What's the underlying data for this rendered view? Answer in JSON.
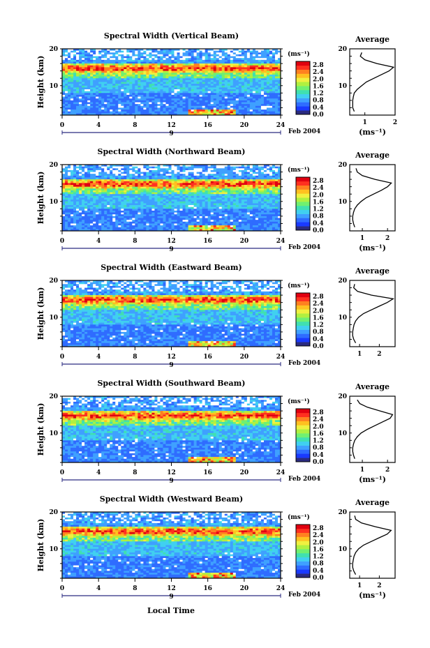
{
  "figure": {
    "xlabel": "Local Time",
    "day_label": "9",
    "date_label": "Feb 2004",
    "ylabel": "Height (km)",
    "units": "(ms⁻¹)",
    "avg_title": "Average",
    "colorbar_ticks": [
      "2.8",
      "2.4",
      "2.0",
      "1.6",
      "1.2",
      "0.8",
      "0.4",
      "0.0"
    ],
    "colorbar_colors": [
      "#2b2b80",
      "#1a3aff",
      "#2f6cff",
      "#3fa0ff",
      "#40d0f0",
      "#40e0b0",
      "#70f070",
      "#b0f040",
      "#f0f040",
      "#ffc020",
      "#ff8020",
      "#ff3020",
      "#e00010"
    ]
  },
  "chart_data": [
    {
      "type": "heatmap",
      "title": "Spectral Width (Vertical Beam)",
      "xlabel": "Local Time",
      "ylabel": "Height (km)",
      "xlim": [
        0,
        24
      ],
      "ylim": [
        2,
        20
      ],
      "xticks": [
        0,
        4,
        8,
        12,
        16,
        20,
        24
      ],
      "yticks": [
        10,
        20
      ],
      "colorbar": {
        "label": "(ms⁻¹)",
        "range": [
          0,
          3.0
        ],
        "ticks": [
          0.0,
          0.4,
          0.8,
          1.2,
          1.6,
          2.0,
          2.4,
          2.8
        ]
      },
      "average_profile": {
        "title": "Average",
        "xlabel": "(ms⁻¹)",
        "xlim": [
          0.5,
          2.0
        ],
        "xticks": [
          1,
          2
        ],
        "ylim": [
          2,
          20
        ],
        "height_km": [
          3,
          4,
          5,
          6,
          7,
          8,
          9,
          10,
          11,
          12,
          13,
          14,
          15,
          16,
          17,
          18,
          19
        ],
        "width_ms": [
          0.65,
          0.6,
          0.6,
          0.6,
          0.62,
          0.65,
          0.75,
          0.9,
          1.05,
          1.3,
          1.55,
          1.8,
          1.95,
          1.4,
          1.0,
          0.85,
          0.9
        ]
      }
    },
    {
      "type": "heatmap",
      "title": "Spectral Width (Northward Beam)",
      "xlabel": "Local Time",
      "ylabel": "Height (km)",
      "xlim": [
        0,
        24
      ],
      "ylim": [
        2,
        20
      ],
      "xticks": [
        0,
        4,
        8,
        12,
        16,
        20,
        24
      ],
      "yticks": [
        10,
        20
      ],
      "colorbar": {
        "label": "(ms⁻¹)",
        "range": [
          0,
          3.0
        ],
        "ticks": [
          0.0,
          0.4,
          0.8,
          1.2,
          1.6,
          2.0,
          2.4,
          2.8
        ]
      },
      "average_profile": {
        "title": "Average",
        "xlabel": "(ms⁻¹)",
        "xlim": [
          0.5,
          2.3
        ],
        "xticks": [
          1,
          2
        ],
        "ylim": [
          2,
          20
        ],
        "height_km": [
          3,
          4,
          5,
          6,
          7,
          8,
          9,
          10,
          11,
          12,
          13,
          14,
          15,
          16,
          17,
          18,
          19
        ],
        "width_ms": [
          0.7,
          0.65,
          0.62,
          0.62,
          0.65,
          0.7,
          0.8,
          0.95,
          1.15,
          1.45,
          1.75,
          2.0,
          2.15,
          1.5,
          1.0,
          0.8,
          0.75
        ]
      }
    },
    {
      "type": "heatmap",
      "title": "Spectral Width (Eastward Beam)",
      "xlabel": "Local Time",
      "ylabel": "Height (km)",
      "xlim": [
        0,
        24
      ],
      "ylim": [
        2,
        20
      ],
      "xticks": [
        0,
        4,
        8,
        12,
        16,
        20,
        24
      ],
      "yticks": [
        10,
        20
      ],
      "colorbar": {
        "label": "(ms⁻¹)",
        "range": [
          0,
          3.0
        ],
        "ticks": [
          0.0,
          0.4,
          0.8,
          1.2,
          1.6,
          2.0,
          2.4,
          2.8
        ]
      },
      "average_profile": {
        "title": "Average",
        "xlabel": "",
        "xlim": [
          0.5,
          2.8
        ],
        "xticks": [
          1,
          2
        ],
        "ylim": [
          2,
          20
        ],
        "height_km": [
          3,
          4,
          5,
          6,
          7,
          8,
          9,
          10,
          11,
          12,
          13,
          14,
          15,
          16,
          17,
          18,
          19
        ],
        "width_ms": [
          0.8,
          0.7,
          0.65,
          0.65,
          0.68,
          0.72,
          0.8,
          0.95,
          1.2,
          1.6,
          2.0,
          2.4,
          2.7,
          1.6,
          0.9,
          0.7,
          0.75
        ]
      }
    },
    {
      "type": "heatmap",
      "title": "Spectral Width (Southward Beam)",
      "xlabel": "Local Time",
      "ylabel": "Height (km)",
      "xlim": [
        0,
        24
      ],
      "ylim": [
        2,
        20
      ],
      "xticks": [
        0,
        4,
        8,
        12,
        16,
        20,
        24
      ],
      "yticks": [
        10,
        20
      ],
      "colorbar": {
        "label": "(ms⁻¹)",
        "range": [
          0,
          3.0
        ],
        "ticks": [
          0.0,
          0.4,
          0.8,
          1.2,
          1.6,
          2.0,
          2.4,
          2.8
        ]
      },
      "average_profile": {
        "title": "Average",
        "xlabel": "(ms⁻¹)",
        "xlim": [
          0.5,
          2.3
        ],
        "xticks": [
          1,
          2
        ],
        "ylim": [
          2,
          20
        ],
        "height_km": [
          3,
          4,
          5,
          6,
          7,
          8,
          9,
          10,
          11,
          12,
          13,
          14,
          15,
          16,
          17,
          18,
          19
        ],
        "width_ms": [
          0.7,
          0.65,
          0.62,
          0.62,
          0.65,
          0.7,
          0.8,
          0.95,
          1.2,
          1.5,
          1.8,
          2.1,
          2.2,
          1.7,
          1.2,
          0.9,
          0.8
        ]
      }
    },
    {
      "type": "heatmap",
      "title": "Spectral Width (Westward Beam)",
      "xlabel": "Local Time",
      "ylabel": "Height (km)",
      "xlim": [
        0,
        24
      ],
      "ylim": [
        2,
        20
      ],
      "xticks": [
        0,
        4,
        8,
        12,
        16,
        20,
        24
      ],
      "yticks": [
        10,
        20
      ],
      "colorbar": {
        "label": "(ms⁻¹)",
        "range": [
          0,
          3.0
        ],
        "ticks": [
          0.0,
          0.4,
          0.8,
          1.2,
          1.6,
          2.0,
          2.4,
          2.8
        ]
      },
      "average_profile": {
        "title": "Average",
        "xlabel": "(ms⁻¹)",
        "xlim": [
          0.5,
          2.8
        ],
        "xticks": [
          1,
          2
        ],
        "ylim": [
          2,
          20
        ],
        "height_km": [
          3,
          4,
          5,
          6,
          7,
          8,
          9,
          10,
          11,
          12,
          13,
          14,
          15,
          16,
          17,
          18,
          19
        ],
        "width_ms": [
          0.8,
          0.7,
          0.65,
          0.65,
          0.68,
          0.72,
          0.8,
          0.95,
          1.2,
          1.6,
          2.0,
          2.4,
          2.6,
          1.8,
          1.1,
          0.8,
          0.75
        ]
      }
    }
  ]
}
